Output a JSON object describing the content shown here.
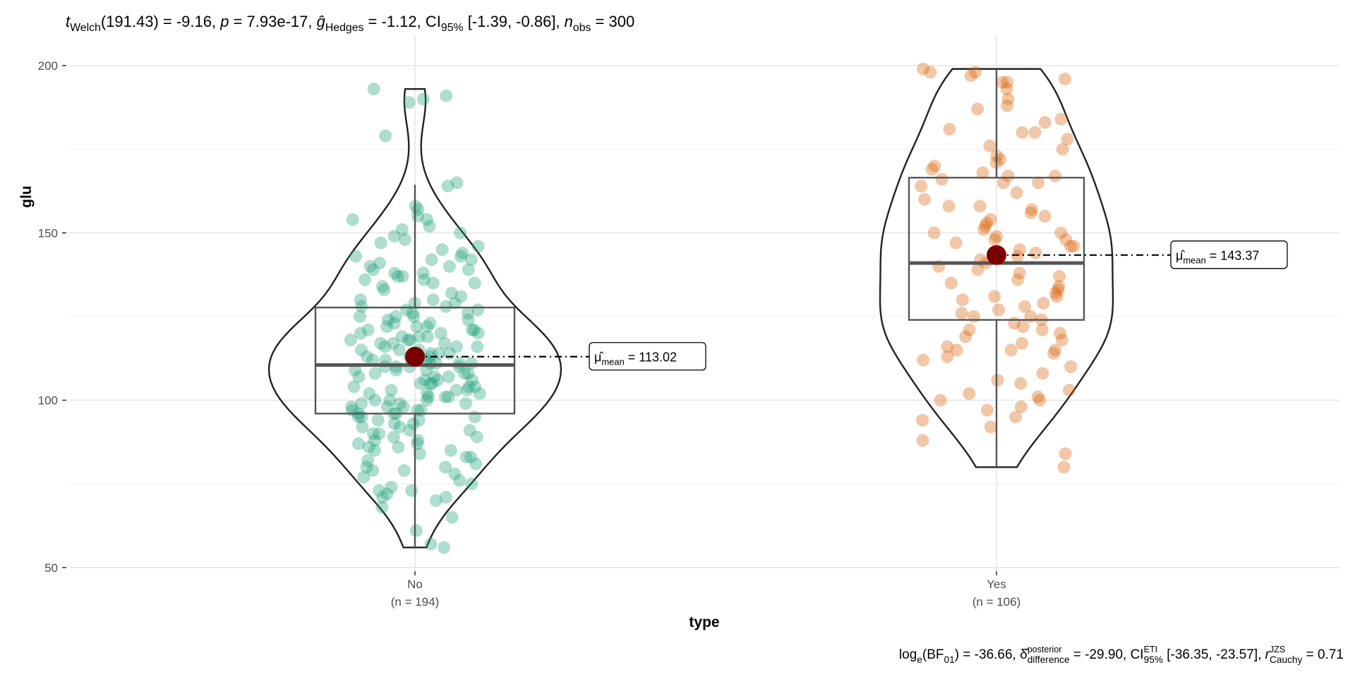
{
  "chart_data": {
    "type": "violin-box-scatter",
    "title_segments": [
      {
        "text": "t",
        "style": "italic"
      },
      {
        "text": "Welch",
        "style": "sub"
      },
      {
        "text": "(191.43) = -9.16, ",
        "style": "normal"
      },
      {
        "text": "p",
        "style": "italic"
      },
      {
        "text": " = 7.93e-17, ",
        "style": "normal"
      },
      {
        "text": "ĝ",
        "style": "italic"
      },
      {
        "text": "Hedges",
        "style": "sub"
      },
      {
        "text": " = -1.12, CI",
        "style": "normal"
      },
      {
        "text": "95%",
        "style": "sub"
      },
      {
        "text": " [-1.39, -0.86], ",
        "style": "normal"
      },
      {
        "text": "n",
        "style": "italic"
      },
      {
        "text": "obs",
        "style": "sub"
      },
      {
        "text": " = 300",
        "style": "normal"
      }
    ],
    "caption_segments": [
      {
        "text": "log",
        "style": "normal"
      },
      {
        "text": "e",
        "style": "sub"
      },
      {
        "text": "(BF",
        "style": "normal"
      },
      {
        "text": "01",
        "style": "sub"
      },
      {
        "text": ") = -36.66, ",
        "style": "normal"
      },
      {
        "text": "δ̂",
        "style": "normal"
      },
      {
        "text": "posterior",
        "style": "sup"
      },
      {
        "text": "difference",
        "style": "subafter"
      },
      {
        "text": " = -29.90, CI",
        "style": "normal"
      },
      {
        "text": "ETI",
        "style": "sup"
      },
      {
        "text": "95%",
        "style": "subafter"
      },
      {
        "text": " [-36.35, -23.57], ",
        "style": "normal"
      },
      {
        "text": "r",
        "style": "italic"
      },
      {
        "text": "JZS",
        "style": "sup"
      },
      {
        "text": "Cauchy",
        "style": "subafter"
      },
      {
        "text": " = 0.71",
        "style": "normal"
      }
    ],
    "xlabel": "type",
    "ylabel": "glu",
    "ylim": [
      45,
      205
    ],
    "yticks": [
      50,
      100,
      150,
      200
    ],
    "grid": true,
    "groups": [
      {
        "name": "No",
        "n_label": "(n = 194)",
        "color": "#1B9E77",
        "mean": 113.02,
        "mean_label_prefix": "μ̂",
        "mean_label_sub": "mean",
        "mean_label_value": " = 113.02",
        "box": {
          "whisker_low": 56,
          "q1": 96,
          "median": 110.5,
          "q3": 127.7,
          "whisker_high": 164.4
        },
        "values": [
          193,
          191,
          190,
          189,
          179,
          165,
          164,
          158,
          157,
          155,
          154,
          154,
          152,
          151,
          150,
          149,
          148,
          147,
          146,
          145,
          144,
          143,
          143,
          142,
          142,
          141,
          140,
          140,
          139,
          139,
          138,
          138,
          137,
          137,
          136,
          136,
          135,
          135,
          134,
          133,
          132,
          131,
          130,
          130,
          129,
          129,
          128,
          128,
          127,
          127,
          126,
          126,
          125,
          125,
          125,
          124,
          124,
          123,
          123,
          122,
          122,
          122,
          121,
          121,
          121,
          120,
          120,
          120,
          119,
          119,
          119,
          118,
          118,
          118,
          117,
          117,
          117,
          116,
          116,
          116,
          115,
          115,
          115,
          114,
          114,
          114,
          113,
          113,
          113,
          112,
          112,
          112,
          111,
          111,
          111,
          111,
          110,
          110,
          110,
          110,
          109,
          109,
          109,
          108,
          108,
          108,
          107,
          107,
          107,
          106,
          106,
          106,
          105,
          105,
          105,
          104,
          104,
          104,
          103,
          103,
          103,
          102,
          102,
          102,
          101,
          101,
          101,
          100,
          100,
          100,
          99,
          99,
          99,
          98,
          98,
          98,
          97,
          97,
          97,
          96,
          96,
          96,
          95,
          95,
          95,
          94,
          94,
          93,
          93,
          92,
          92,
          91,
          91,
          90,
          90,
          89,
          89,
          88,
          88,
          87,
          87,
          86,
          86,
          85,
          85,
          84,
          83,
          83,
          82,
          81,
          80,
          80,
          79,
          79,
          78,
          77,
          76,
          75,
          74,
          73,
          73,
          72,
          71,
          71,
          70,
          68,
          65,
          61,
          57,
          56
        ]
      },
      {
        "name": "Yes",
        "n_label": "(n = 106)",
        "color": "#D95F02",
        "mean": 143.37,
        "mean_label_prefix": "μ̂",
        "mean_label_sub": "mean",
        "mean_label_value": " = 143.37",
        "box": {
          "whisker_low": 80,
          "q1": 124,
          "median": 141,
          "q3": 166.5,
          "whisker_high": 199
        },
        "values": [
          199,
          198,
          198,
          197,
          196,
          195,
          195,
          193,
          190,
          188,
          187,
          184,
          183,
          181,
          180,
          180,
          178,
          176,
          175,
          173,
          172,
          171,
          170,
          169,
          168,
          167,
          167,
          166,
          165,
          165,
          164,
          162,
          160,
          158,
          158,
          157,
          156,
          155,
          154,
          153,
          152,
          151,
          150,
          149,
          148,
          148,
          147,
          146,
          145,
          144,
          143,
          142,
          141,
          140,
          139,
          138,
          137,
          136,
          135,
          134,
          133,
          132,
          131,
          130,
          129,
          128,
          127,
          126,
          125,
          124,
          123,
          122,
          121,
          120,
          119,
          118,
          117,
          116,
          115,
          115,
          115,
          114,
          113,
          112,
          110,
          108,
          106,
          105,
          103,
          102,
          101,
          100,
          100,
          98,
          97,
          95,
          94,
          92,
          80,
          84,
          88,
          121,
          125,
          131,
          146,
          150
        ]
      }
    ],
    "mean_point_color": "#7A0000"
  }
}
